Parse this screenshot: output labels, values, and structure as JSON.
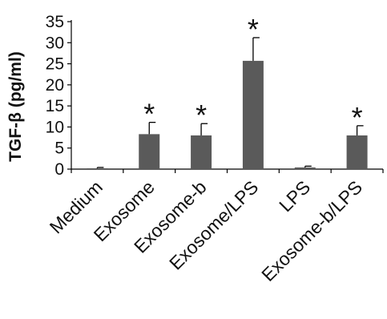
{
  "chart_data": {
    "type": "bar",
    "title": "",
    "xlabel": "",
    "ylabel": "TGF-β (pg/ml)",
    "categories": [
      "Medium",
      "Exosome",
      "Exosome-b",
      "Exosome/LPS",
      "LPS",
      "Exosome-b/LPS"
    ],
    "values": [
      0.2,
      8.3,
      8.0,
      25.7,
      0.4,
      8.0
    ],
    "errors": [
      0.2,
      2.8,
      2.8,
      5.5,
      0.3,
      2.3
    ],
    "significance": [
      "",
      "*",
      "*",
      "*",
      "",
      "*"
    ],
    "ylim": [
      0,
      35
    ],
    "yticks": [
      0,
      5,
      10,
      15,
      20,
      25,
      30,
      35
    ],
    "yticks_labels": [
      "0",
      "5",
      "10",
      "15",
      "20",
      "25",
      "30",
      "35"
    ],
    "grid": false,
    "legend": "none",
    "colors": {
      "bar": "#5a5a5a",
      "axis": "#000000",
      "text": "#111111"
    }
  }
}
